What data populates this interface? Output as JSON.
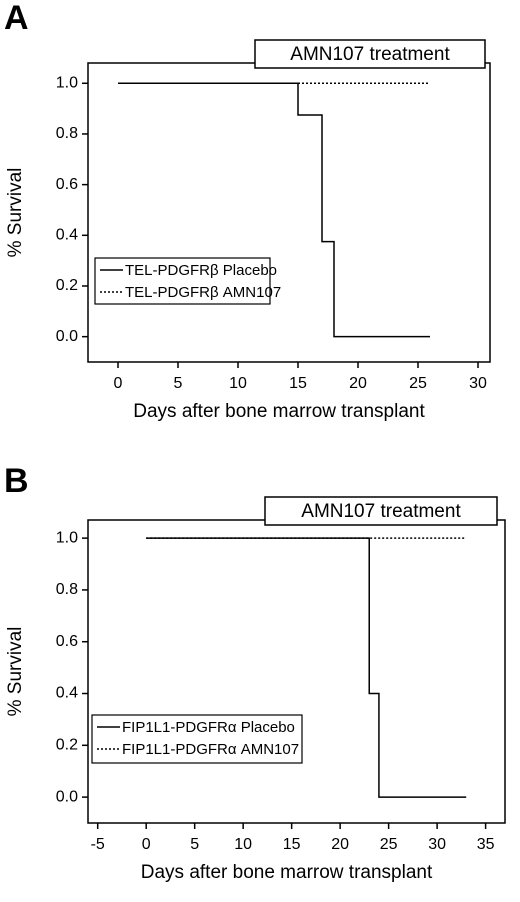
{
  "chart_data": [
    {
      "type": "step",
      "title": "A",
      "annotation": "AMN107 treatment",
      "x_label": "Days after bone marrow transplant",
      "y_label": "% Survival",
      "xlim": [
        -2.5,
        31
      ],
      "ylim": [
        -0.1,
        1.08
      ],
      "xticks": [
        0,
        5,
        10,
        15,
        20,
        25,
        30
      ],
      "yticks": [
        {
          "value": 0,
          "label": "0.0"
        },
        {
          "value": 0.2,
          "label": "0.2"
        },
        {
          "value": 0.4,
          "label": "0.4"
        },
        {
          "value": 0.6,
          "label": "0.6"
        },
        {
          "value": 0.8,
          "label": "0.8"
        },
        {
          "value": 1,
          "label": "1.0"
        }
      ],
      "legend": "lower left",
      "series": [
        {
          "name": "TEL-PDGFRβ AMN107",
          "color": "#000000",
          "style": "dotted",
          "x": [
            0,
            26
          ],
          "values": [
            1,
            1
          ]
        },
        {
          "name": "TEL-PDGFRβ Placebo",
          "color": "#000000",
          "style": "solid",
          "x": [
            0,
            15,
            17,
            18,
            26
          ],
          "values": [
            1,
            0.875,
            0.375,
            0,
            0
          ]
        }
      ]
    },
    {
      "type": "step",
      "title": "B",
      "annotation": "AMN107 treatment",
      "x_label": "Days after bone marrow transplant",
      "y_label": "% Survival",
      "xlim": [
        -6,
        37
      ],
      "ylim": [
        -0.1,
        1.07
      ],
      "xticks": [
        -5,
        0,
        5,
        10,
        15,
        20,
        25,
        30,
        35
      ],
      "yticks": [
        {
          "value": 0,
          "label": "0.0"
        },
        {
          "value": 0.2,
          "label": "0.2"
        },
        {
          "value": 0.4,
          "label": "0.4"
        },
        {
          "value": 0.6,
          "label": "0.6"
        },
        {
          "value": 0.8,
          "label": "0.8"
        },
        {
          "value": 1,
          "label": "1.0"
        }
      ],
      "legend": "lower left",
      "series": [
        {
          "name": "FIP1L1-PDGFRα AMN107",
          "color": "#000000",
          "style": "dotted",
          "x": [
            0,
            33
          ],
          "values": [
            1,
            1
          ]
        },
        {
          "name": "FIP1L1-PDGFRα Placebo",
          "color": "#000000",
          "style": "solid",
          "x": [
            0,
            23,
            24,
            33
          ],
          "values": [
            1,
            0.4,
            0,
            0
          ]
        }
      ]
    }
  ]
}
